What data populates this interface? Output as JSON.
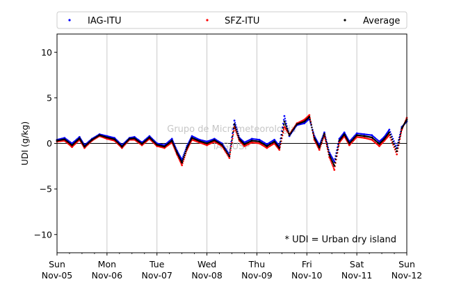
{
  "chart_data": {
    "type": "scatter",
    "ylabel": "UDI (g/kg)",
    "ylim": [
      -12,
      12
    ],
    "yticks": [
      -10,
      -5,
      0,
      5,
      10
    ],
    "x_tick_labels": [
      {
        "day": "Sun",
        "date": "Nov-05"
      },
      {
        "day": "Mon",
        "date": "Nov-06"
      },
      {
        "day": "Tue",
        "date": "Nov-07"
      },
      {
        "day": "Wed",
        "date": "Nov-08"
      },
      {
        "day": "Thu",
        "date": "Nov-09"
      },
      {
        "day": "Fri",
        "date": "Nov-10"
      },
      {
        "day": "Sat",
        "date": "Nov-11"
      },
      {
        "day": "Sun",
        "date": "Nov-12"
      }
    ],
    "x_range_days": [
      0,
      7
    ],
    "grid": "vertical-at-days",
    "zero_line": true,
    "legend_position": "top, above plot, 3 columns",
    "annotation": "* UDI = Urban dry island",
    "watermark_lines": [
      "Grupo de Micrometeorologia",
      "IAG/USP"
    ],
    "series": [
      {
        "name": "IAG-ITU",
        "color": "#0000ff",
        "marker": "dot",
        "x": [
          0.0,
          0.15,
          0.3,
          0.45,
          0.55,
          0.7,
          0.85,
          1.0,
          1.15,
          1.3,
          1.45,
          1.55,
          1.7,
          1.85,
          2.0,
          2.15,
          2.3,
          2.4,
          2.5,
          2.6,
          2.7,
          2.85,
          3.0,
          3.15,
          3.3,
          3.45,
          3.55,
          3.65,
          3.75,
          3.9,
          4.05,
          4.2,
          4.35,
          4.45,
          4.55,
          4.65,
          4.8,
          4.95,
          5.05,
          5.15,
          5.25,
          5.35,
          5.45,
          5.55,
          5.65,
          5.75,
          5.85,
          6.0,
          6.15,
          6.3,
          6.45,
          6.55,
          6.65,
          6.8,
          6.9,
          7.0
        ],
        "y": [
          0.4,
          0.6,
          0.0,
          0.7,
          -0.2,
          0.5,
          1.0,
          0.8,
          0.6,
          -0.2,
          0.6,
          0.7,
          0.1,
          0.8,
          0.0,
          -0.2,
          0.5,
          -0.8,
          -1.8,
          -0.3,
          0.8,
          0.4,
          0.2,
          0.5,
          0.0,
          -1.2,
          2.5,
          0.6,
          0.1,
          0.5,
          0.4,
          -0.1,
          0.4,
          -0.3,
          3.0,
          0.8,
          2.0,
          2.2,
          2.7,
          0.8,
          -0.2,
          1.2,
          -1.0,
          -2.0,
          0.5,
          1.2,
          0.2,
          1.1,
          1.0,
          0.9,
          0.2,
          0.7,
          1.5,
          -0.5,
          1.8,
          2.4
        ]
      },
      {
        "name": "SFZ-ITU",
        "color": "#ff0000",
        "marker": "dot",
        "x": [
          0.0,
          0.15,
          0.3,
          0.45,
          0.55,
          0.7,
          0.85,
          1.0,
          1.15,
          1.3,
          1.45,
          1.55,
          1.7,
          1.85,
          2.0,
          2.15,
          2.3,
          2.4,
          2.5,
          2.6,
          2.7,
          2.85,
          3.0,
          3.15,
          3.3,
          3.45,
          3.55,
          3.65,
          3.75,
          3.9,
          4.05,
          4.2,
          4.35,
          4.45,
          4.55,
          4.65,
          4.8,
          4.95,
          5.05,
          5.15,
          5.25,
          5.35,
          5.45,
          5.55,
          5.65,
          5.75,
          5.85,
          6.0,
          6.15,
          6.3,
          6.45,
          6.55,
          6.65,
          6.8,
          6.9,
          7.0
        ],
        "y": [
          0.2,
          0.3,
          -0.4,
          0.4,
          -0.5,
          0.3,
          0.8,
          0.5,
          0.3,
          -0.5,
          0.4,
          0.4,
          -0.2,
          0.5,
          -0.3,
          -0.5,
          0.1,
          -1.2,
          -2.4,
          -0.7,
          0.4,
          0.1,
          -0.2,
          0.2,
          -0.3,
          -1.6,
          1.8,
          0.3,
          -0.3,
          0.1,
          0.0,
          -0.5,
          0.0,
          -0.7,
          1.8,
          1.0,
          2.2,
          2.6,
          3.1,
          0.4,
          -0.7,
          0.9,
          -1.5,
          -2.9,
          0.1,
          0.8,
          -0.2,
          0.7,
          0.6,
          0.4,
          -0.3,
          0.3,
          0.9,
          -1.2,
          1.5,
          2.8
        ]
      },
      {
        "name": "Average",
        "color": "#000000",
        "marker": "dot",
        "x": [
          0.0,
          0.15,
          0.3,
          0.45,
          0.55,
          0.7,
          0.85,
          1.0,
          1.15,
          1.3,
          1.45,
          1.55,
          1.7,
          1.85,
          2.0,
          2.15,
          2.3,
          2.4,
          2.5,
          2.6,
          2.7,
          2.85,
          3.0,
          3.15,
          3.3,
          3.45,
          3.55,
          3.65,
          3.75,
          3.9,
          4.05,
          4.2,
          4.35,
          4.45,
          4.55,
          4.65,
          4.8,
          4.95,
          5.05,
          5.15,
          5.25,
          5.35,
          5.45,
          5.55,
          5.65,
          5.75,
          5.85,
          6.0,
          6.15,
          6.3,
          6.45,
          6.55,
          6.65,
          6.8,
          6.9,
          7.0
        ],
        "y": [
          0.3,
          0.45,
          -0.2,
          0.55,
          -0.35,
          0.4,
          0.9,
          0.65,
          0.45,
          -0.35,
          0.5,
          0.55,
          -0.05,
          0.65,
          -0.15,
          -0.35,
          0.3,
          -1.0,
          -2.1,
          -0.5,
          0.6,
          0.25,
          0.0,
          0.35,
          -0.15,
          -1.4,
          2.1,
          0.45,
          -0.1,
          0.3,
          0.2,
          -0.3,
          0.2,
          -0.5,
          2.4,
          0.9,
          2.1,
          2.4,
          2.9,
          0.6,
          -0.45,
          1.05,
          -1.25,
          -2.45,
          0.3,
          1.0,
          0.0,
          0.9,
          0.8,
          0.65,
          -0.05,
          0.5,
          1.2,
          -0.85,
          1.65,
          2.6
        ]
      }
    ]
  }
}
